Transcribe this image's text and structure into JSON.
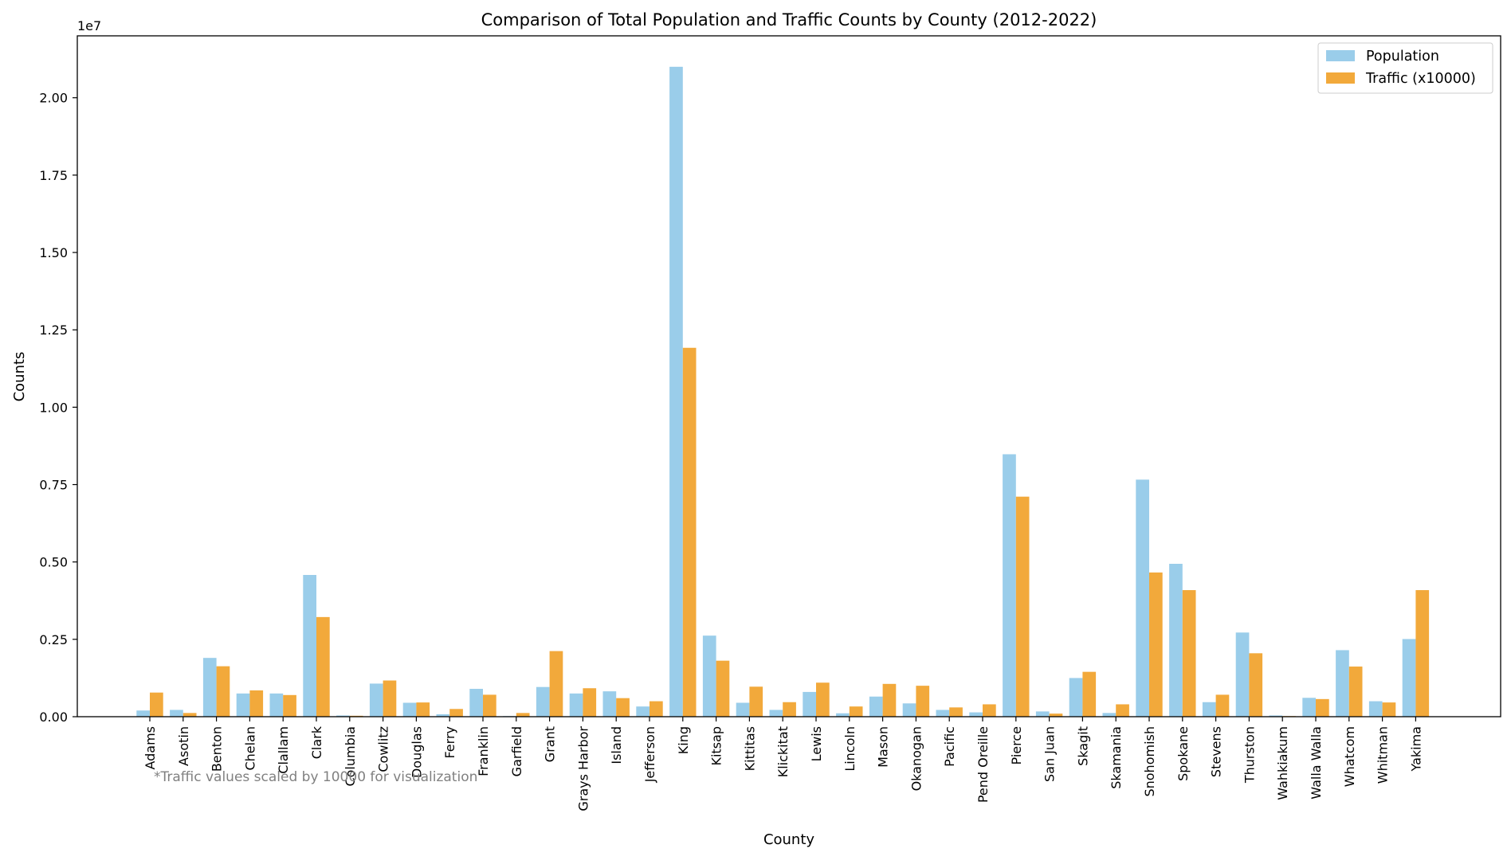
{
  "chart_data": {
    "type": "bar",
    "title": "Comparison of Total Population and Traffic Counts by County (2012-2022)",
    "xlabel": "County",
    "ylabel": "Counts",
    "y_scale_label": "1e7",
    "y_multiplier": 10000000,
    "ylim": [
      0,
      2.2
    ],
    "yticks": [
      0.0,
      0.25,
      0.5,
      0.75,
      1.0,
      1.25,
      1.5,
      1.75,
      2.0
    ],
    "ytick_labels": [
      "0.00",
      "0.25",
      "0.50",
      "0.75",
      "1.00",
      "1.25",
      "1.50",
      "1.75",
      "2.00"
    ],
    "legend_position": "top-right",
    "grid": false,
    "annotation": "*Traffic values scaled by 10000 for visualization",
    "categories": [
      "Adams",
      "Asotin",
      "Benton",
      "Chelan",
      "Clallam",
      "Clark",
      "Columbia",
      "Cowlitz",
      "Douglas",
      "Ferry",
      "Franklin",
      "Garfield",
      "Grant",
      "Grays Harbor",
      "Island",
      "Jefferson",
      "King",
      "Kitsap",
      "Kittitas",
      "Klickitat",
      "Lewis",
      "Lincoln",
      "Mason",
      "Okanogan",
      "Pacific",
      "Pend Oreille",
      "Pierce",
      "San Juan",
      "Skagit",
      "Skamania",
      "Snohomish",
      "Spokane",
      "Stevens",
      "Thurston",
      "Wahkiakum",
      "Walla Walla",
      "Whatcom",
      "Whitman",
      "Yakima"
    ],
    "series": [
      {
        "name": "Population",
        "color": "#9ACDEA",
        "values": [
          0.02,
          0.022,
          0.19,
          0.075,
          0.075,
          0.458,
          0.004,
          0.107,
          0.045,
          0.008,
          0.09,
          0.002,
          0.096,
          0.075,
          0.082,
          0.033,
          2.1,
          0.262,
          0.045,
          0.022,
          0.08,
          0.011,
          0.065,
          0.043,
          0.022,
          0.014,
          0.848,
          0.017,
          0.125,
          0.012,
          0.766,
          0.494,
          0.047,
          0.272,
          0.004,
          0.061,
          0.215,
          0.05,
          0.251
        ]
      },
      {
        "name": "Traffic (x10000)",
        "color": "#F2A93B",
        "values": [
          0.078,
          0.012,
          0.163,
          0.085,
          0.07,
          0.322,
          0.003,
          0.117,
          0.046,
          0.025,
          0.071,
          0.012,
          0.212,
          0.092,
          0.06,
          0.05,
          1.192,
          0.181,
          0.097,
          0.047,
          0.11,
          0.033,
          0.106,
          0.1,
          0.03,
          0.04,
          0.711,
          0.01,
          0.145,
          0.04,
          0.466,
          0.409,
          0.071,
          0.205,
          0.002,
          0.057,
          0.162,
          0.046,
          0.409
        ]
      }
    ]
  }
}
